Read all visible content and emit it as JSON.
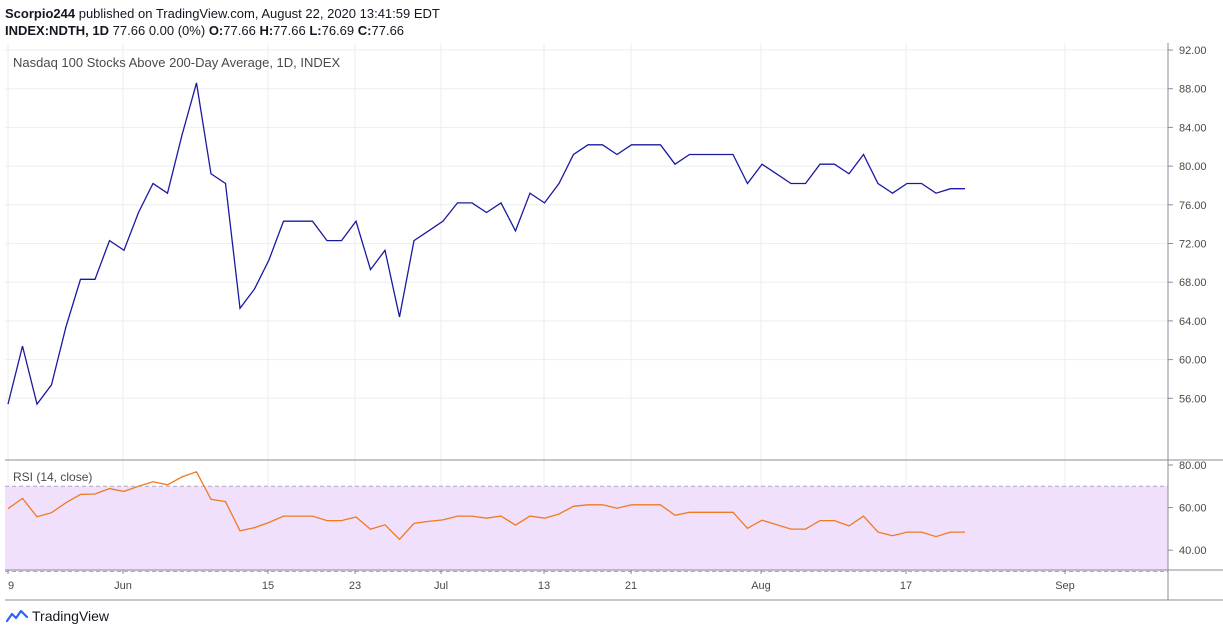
{
  "header": {
    "author": "Scorpio244",
    "published_text": "published on TradingView.com, August 22, 2020 13:41:59 EDT",
    "symbol": "INDEX:NDTH, 1D",
    "last": "77.66",
    "change": "0.00 (0%)",
    "o_label": "O:",
    "o_value": "77.66",
    "h_label": "H:",
    "h_value": "77.66",
    "l_label": "L:",
    "l_value": "76.69",
    "c_label": "C:",
    "c_value": "77.66"
  },
  "branding": {
    "label": "TradingView"
  },
  "colors": {
    "price_line": "#1a1aa0",
    "rsi_line": "#f07a20",
    "rsi_line_overbought": "#d4861c",
    "rsi_band": "#f0e0fc"
  },
  "chart_data": [
    {
      "type": "line",
      "title": "Nasdaq 100 Stocks Above 200-Day Average, 1D, INDEX",
      "ylim": [
        52,
        92
      ],
      "yticks": [
        "56.00",
        "60.00",
        "64.00",
        "68.00",
        "72.00",
        "76.00",
        "80.00",
        "84.00",
        "88.00",
        "92.00"
      ],
      "xticks": [
        "9",
        "Jun",
        "15",
        "23",
        "Jul",
        "13",
        "21",
        "Aug",
        "17",
        "Sep"
      ],
      "grid": true,
      "series": [
        {
          "values": [
            55.4,
            61.4,
            55.4,
            57.4,
            63.4,
            68.3,
            68.3,
            72.3,
            71.3,
            75.2,
            78.2,
            77.2,
            83.2,
            88.6,
            79.2,
            78.2,
            65.3,
            67.3,
            70.3,
            74.3,
            74.3,
            74.3,
            72.3,
            72.3,
            74.3,
            69.3,
            71.3,
            64.4,
            72.3,
            73.3,
            74.3,
            76.2,
            76.2,
            75.2,
            76.2,
            73.3,
            77.2,
            76.2,
            78.2,
            81.2,
            82.2,
            82.2,
            81.2,
            82.2,
            82.2,
            82.2,
            80.2,
            81.2,
            81.2,
            81.2,
            81.2,
            78.2,
            80.2,
            79.2,
            78.2,
            78.2,
            80.2,
            80.2,
            79.2,
            81.2,
            78.2,
            77.2,
            78.2,
            78.2,
            77.2,
            77.66,
            77.66
          ]
        }
      ]
    },
    {
      "type": "line",
      "title": "RSI (14, close)",
      "ylim": [
        26,
        80
      ],
      "yticks": [
        "40.00",
        "60.00",
        "80.00"
      ],
      "band": [
        30,
        70
      ],
      "series": [
        {
          "values": [
            59.5,
            64.3,
            55.7,
            57.6,
            62.3,
            66.2,
            66.4,
            68.9,
            67.6,
            70.0,
            72.1,
            70.7,
            74.4,
            76.8,
            63.9,
            62.8,
            49.1,
            50.6,
            53.0,
            56.0,
            56.0,
            56.0,
            53.9,
            53.9,
            55.6,
            49.8,
            51.9,
            45.1,
            52.6,
            53.5,
            54.2,
            56.0,
            56.0,
            55.0,
            56.0,
            51.8,
            56.0,
            55.0,
            57.0,
            60.6,
            61.3,
            61.3,
            59.7,
            61.3,
            61.3,
            61.3,
            56.4,
            57.8,
            57.8,
            57.8,
            57.8,
            50.3,
            54.1,
            52.0,
            49.9,
            49.9,
            53.9,
            53.9,
            51.4,
            56.0,
            48.5,
            46.8,
            48.5,
            48.5,
            46.4,
            48.5,
            48.5
          ]
        }
      ]
    }
  ]
}
